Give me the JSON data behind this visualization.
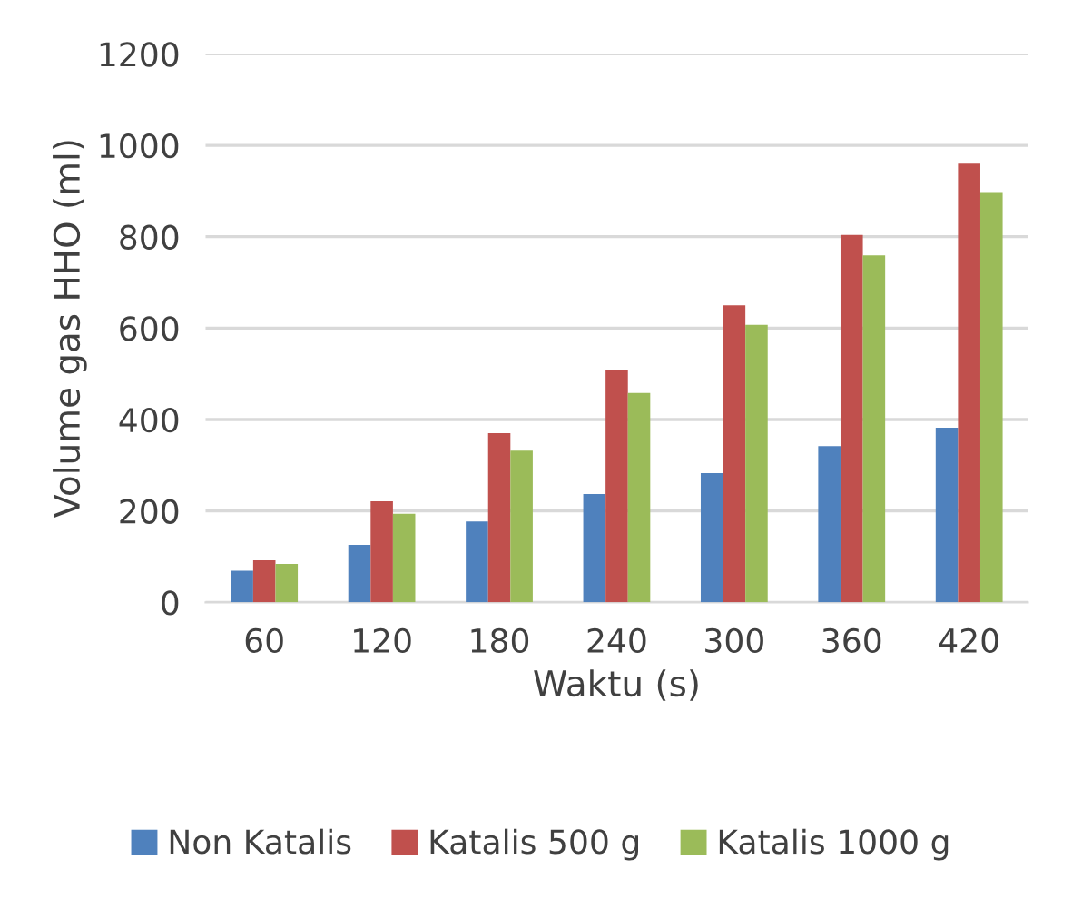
{
  "chart_data": {
    "type": "bar",
    "xlabel": "Waktu (s)",
    "ylabel": "Volume gas HHO (ml)",
    "categories": [
      "60",
      "120",
      "180",
      "240",
      "300",
      "360",
      "420"
    ],
    "series": [
      {
        "name": "Non Katalis",
        "color": "#4f81bd",
        "values": [
          69,
          126,
          177,
          237,
          283,
          342,
          382
        ]
      },
      {
        "name": "Katalis 500 g",
        "color": "#c0504d",
        "values": [
          92,
          221,
          370,
          508,
          650,
          804,
          960
        ]
      },
      {
        "name": "Katalis 1000 g",
        "color": "#9bbb59",
        "values": [
          84,
          194,
          332,
          458,
          607,
          759,
          898
        ]
      }
    ],
    "ylim": [
      0,
      1200
    ],
    "yticks": [
      0,
      200,
      400,
      600,
      800,
      1000,
      1200
    ],
    "grid": "y",
    "legend": "bottom"
  }
}
